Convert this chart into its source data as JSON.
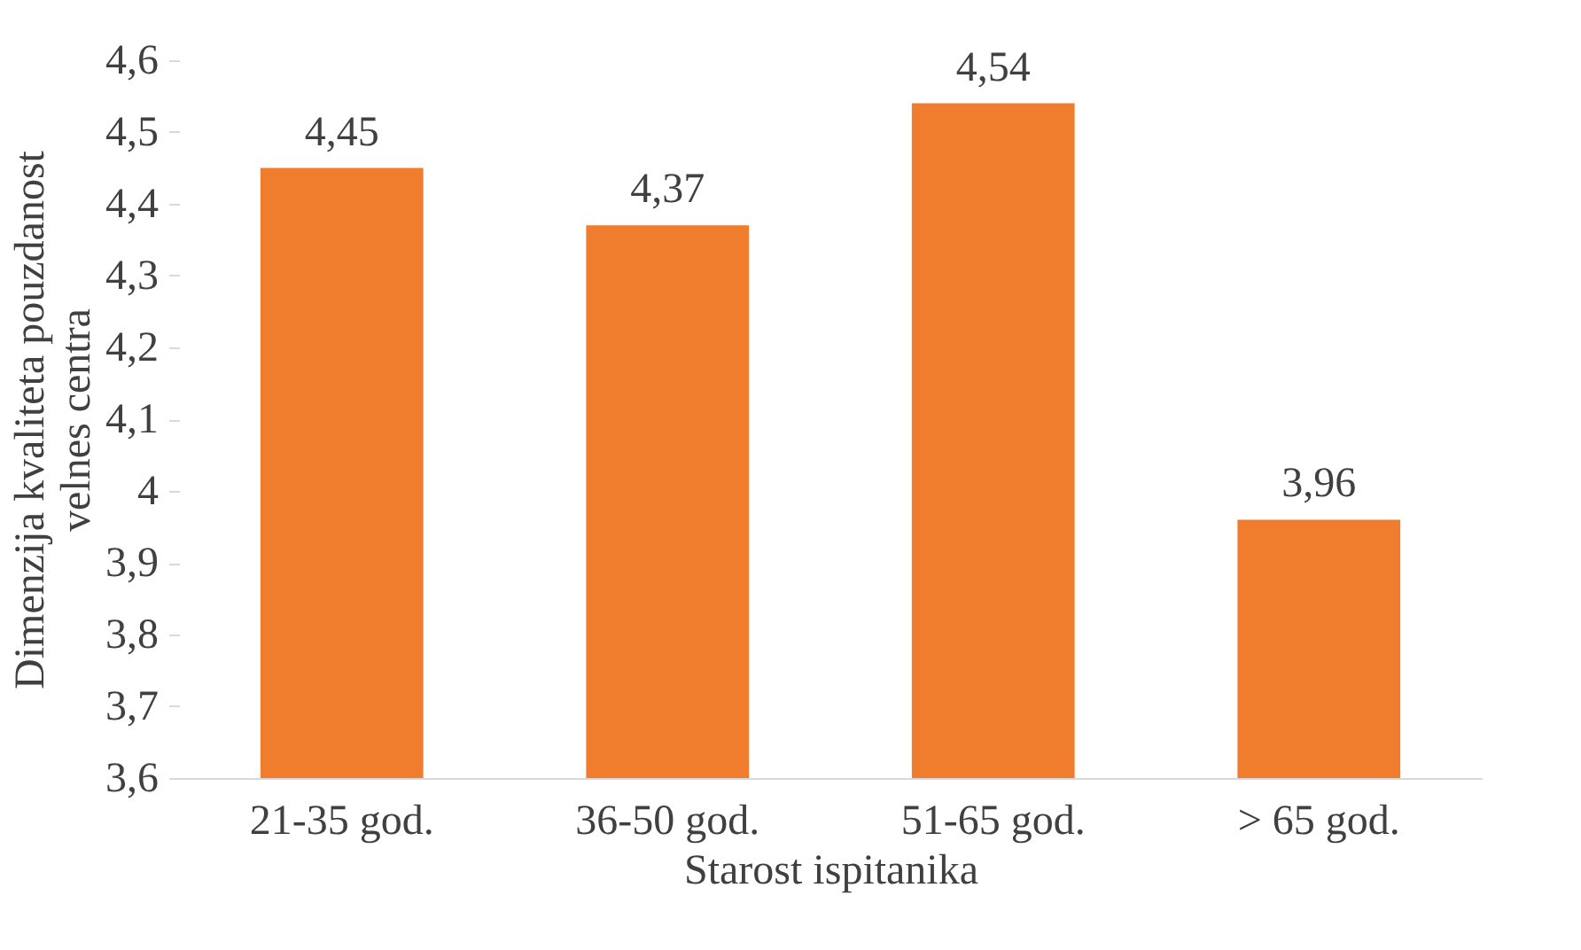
{
  "chart_data": {
    "type": "bar",
    "xlabel": "Starost ispitanika",
    "ylabel": "Dimenzija kvaliteta pouzdanost velnes centra",
    "categories": [
      "21-35 god.",
      "36-50 god.",
      "51-65 god.",
      "> 65 god."
    ],
    "values": [
      4.45,
      4.37,
      4.54,
      3.96
    ],
    "value_labels": [
      "4,45",
      "4,37",
      "4,54",
      "3,96"
    ],
    "color": "#f07d2e",
    "ylim": [
      3.6,
      4.6
    ],
    "yticks": [
      {
        "value": 3.6,
        "label": "3,6"
      },
      {
        "value": 3.7,
        "label": "3,7"
      },
      {
        "value": 3.8,
        "label": "3,8"
      },
      {
        "value": 3.9,
        "label": "3,9"
      },
      {
        "value": 4.0,
        "label": "4"
      },
      {
        "value": 4.1,
        "label": "4,1"
      },
      {
        "value": 4.2,
        "label": "4,2"
      },
      {
        "value": 4.3,
        "label": "4,3"
      },
      {
        "value": 4.4,
        "label": "4,4"
      },
      {
        "value": 4.5,
        "label": "4,5"
      },
      {
        "value": 4.6,
        "label": "4,6"
      }
    ],
    "grid": false
  }
}
